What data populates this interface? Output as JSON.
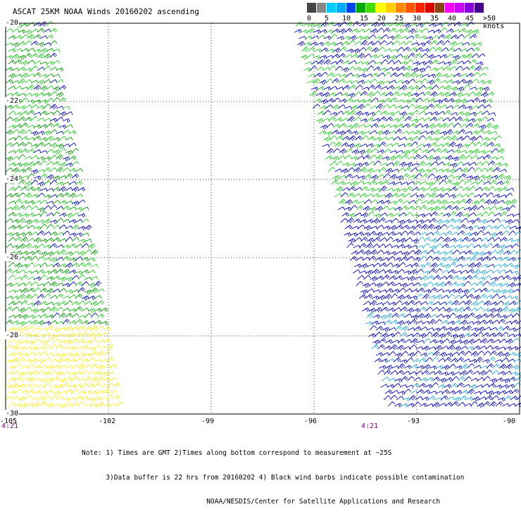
{
  "title": "ASCAT 25KM NOAA Winds 20160202 ascending",
  "legend": {
    "labels": [
      "0",
      "5",
      "10",
      "15",
      "20",
      "25",
      "30",
      "35",
      "40",
      "45",
      ">50 knots"
    ],
    "colors": [
      "#444444",
      "#888888",
      "#00ccff",
      "#00aaff",
      "#0044ee",
      "#00aa00",
      "#44dd00",
      "#ffff00",
      "#ffcc00",
      "#ff8800",
      "#ff5500",
      "#ff2200",
      "#dd0000",
      "#8b4513",
      "#ff00ff",
      "#cc00ff",
      "#8800dd",
      "#440088"
    ]
  },
  "map": {
    "x_ticks": [
      "-105",
      "-102",
      "-99",
      "-96",
      "-93",
      "-90"
    ],
    "x_values": [
      -105,
      -102,
      -99,
      -96,
      -93,
      -90
    ],
    "y_ticks": [
      "-20",
      "-22",
      "-24",
      "-26",
      "-28",
      "-30"
    ],
    "y_values": [
      -20,
      -22,
      -24,
      -26,
      -28,
      -30
    ],
    "lon_range": [
      -105,
      -90
    ],
    "lat_range": [
      -30,
      -20
    ],
    "time_labels": [
      "4:21",
      "4:21"
    ],
    "time_label_lons": [
      -105,
      -94.5
    ]
  },
  "notes": [
    "Note: 1) Times are GMT 2)Times along bottom correspond to measurement at ~25S",
    "      3)Data buffer is 22 hrs from 20160202 4) Black wind barbs indicate possible contamination",
    "                               NOAA/NESDIS/Center for Satellite Applications and Research"
  ]
}
